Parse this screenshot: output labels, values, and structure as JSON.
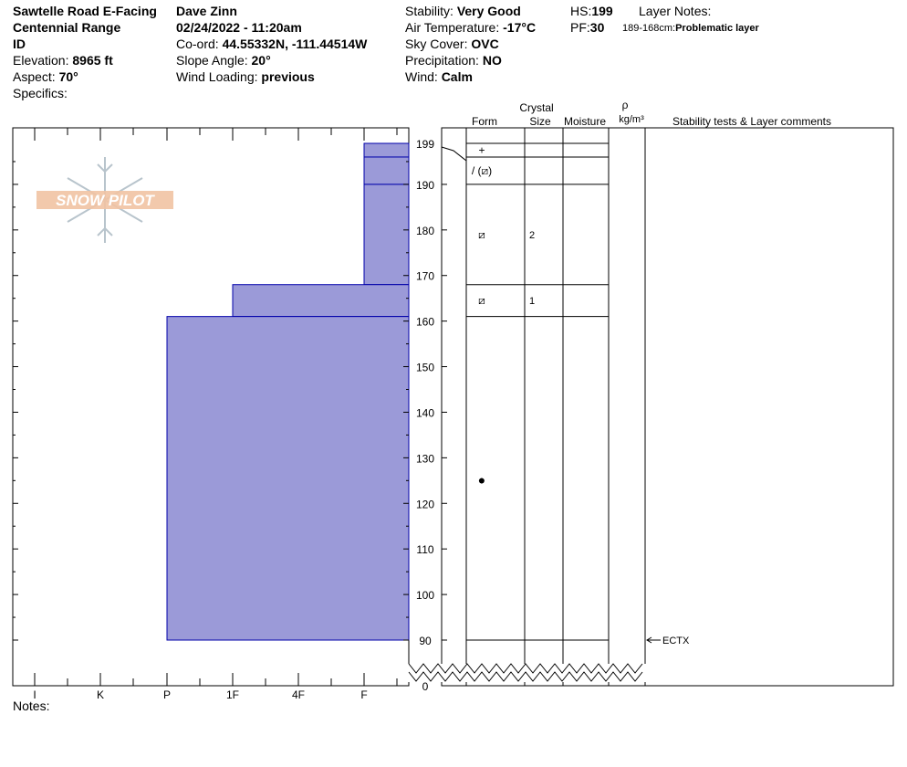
{
  "header": {
    "location": "Sawtelle Road E-Facing",
    "range": "Centennial Range",
    "state": "ID",
    "elevation_label": "Elevation: ",
    "elevation_value": "8965 ft",
    "aspect_label": "Aspect: ",
    "aspect_value": "70°",
    "specifics_label": "Specifics:",
    "observer": "Dave Zinn",
    "datetime": "02/24/2022 - 11:20am",
    "coord_label": "Co-ord: ",
    "coord_value": "44.55332N, -111.44514W",
    "slope_label": "Slope Angle: ",
    "slope_value": "20°",
    "wind_loading_label": "Wind Loading: ",
    "wind_loading_value": "previous",
    "stability_label": "Stability: ",
    "stability_value": "Very Good",
    "air_temp_label": "Air Temperature: ",
    "air_temp_value": "-17°C",
    "sky_label": "Sky Cover: ",
    "sky_value": "OVC",
    "precip_label": "Precipitation: ",
    "precip_value": "NO",
    "wind_label": "Wind: ",
    "wind_value": "Calm",
    "hs_label": "HS:",
    "hs_value": "199",
    "pf_label": "PF:",
    "pf_value": "30",
    "layer_notes_label": "Layer Notes:",
    "layer_note_range": "189-168cm:",
    "layer_note_text": "Problematic layer"
  },
  "columns": {
    "crystal": "Crystal",
    "form": "Form",
    "size": "Size",
    "moisture": "Moisture",
    "rho": "ρ",
    "density_unit": "kg/m³",
    "comments": "Stability tests & Layer comments"
  },
  "logo_text": "SNOW PILOT",
  "notes_label": "Notes:",
  "colors": {
    "hardness_fill": "#9b9ad8",
    "hardness_stroke": "#0000aa",
    "logo": "#f0c2a0"
  },
  "chart_data": {
    "type": "snow-profile",
    "depth_ticks": [
      199,
      190,
      180,
      170,
      160,
      150,
      140,
      130,
      120,
      110,
      100,
      90,
      0
    ],
    "hardness_ticks": [
      "I",
      "K",
      "P",
      "1F",
      "4F",
      "F"
    ],
    "layers": [
      {
        "top": 199,
        "bottom": 196,
        "hardness": "F+",
        "form": "+",
        "size": ""
      },
      {
        "top": 196,
        "bottom": 190,
        "hardness": "F+",
        "form": "/ (⧄)",
        "size": ""
      },
      {
        "top": 190,
        "bottom": 168,
        "hardness": "F",
        "form": "⧄",
        "size": "2"
      },
      {
        "top": 168,
        "bottom": 161,
        "hardness": "1F",
        "form": "⧄",
        "size": "1"
      },
      {
        "top": 161,
        "bottom": 90,
        "hardness": "P",
        "form": "●",
        "size": ""
      }
    ],
    "tests": [
      {
        "depth": 90,
        "label": "ECTX"
      }
    ]
  }
}
